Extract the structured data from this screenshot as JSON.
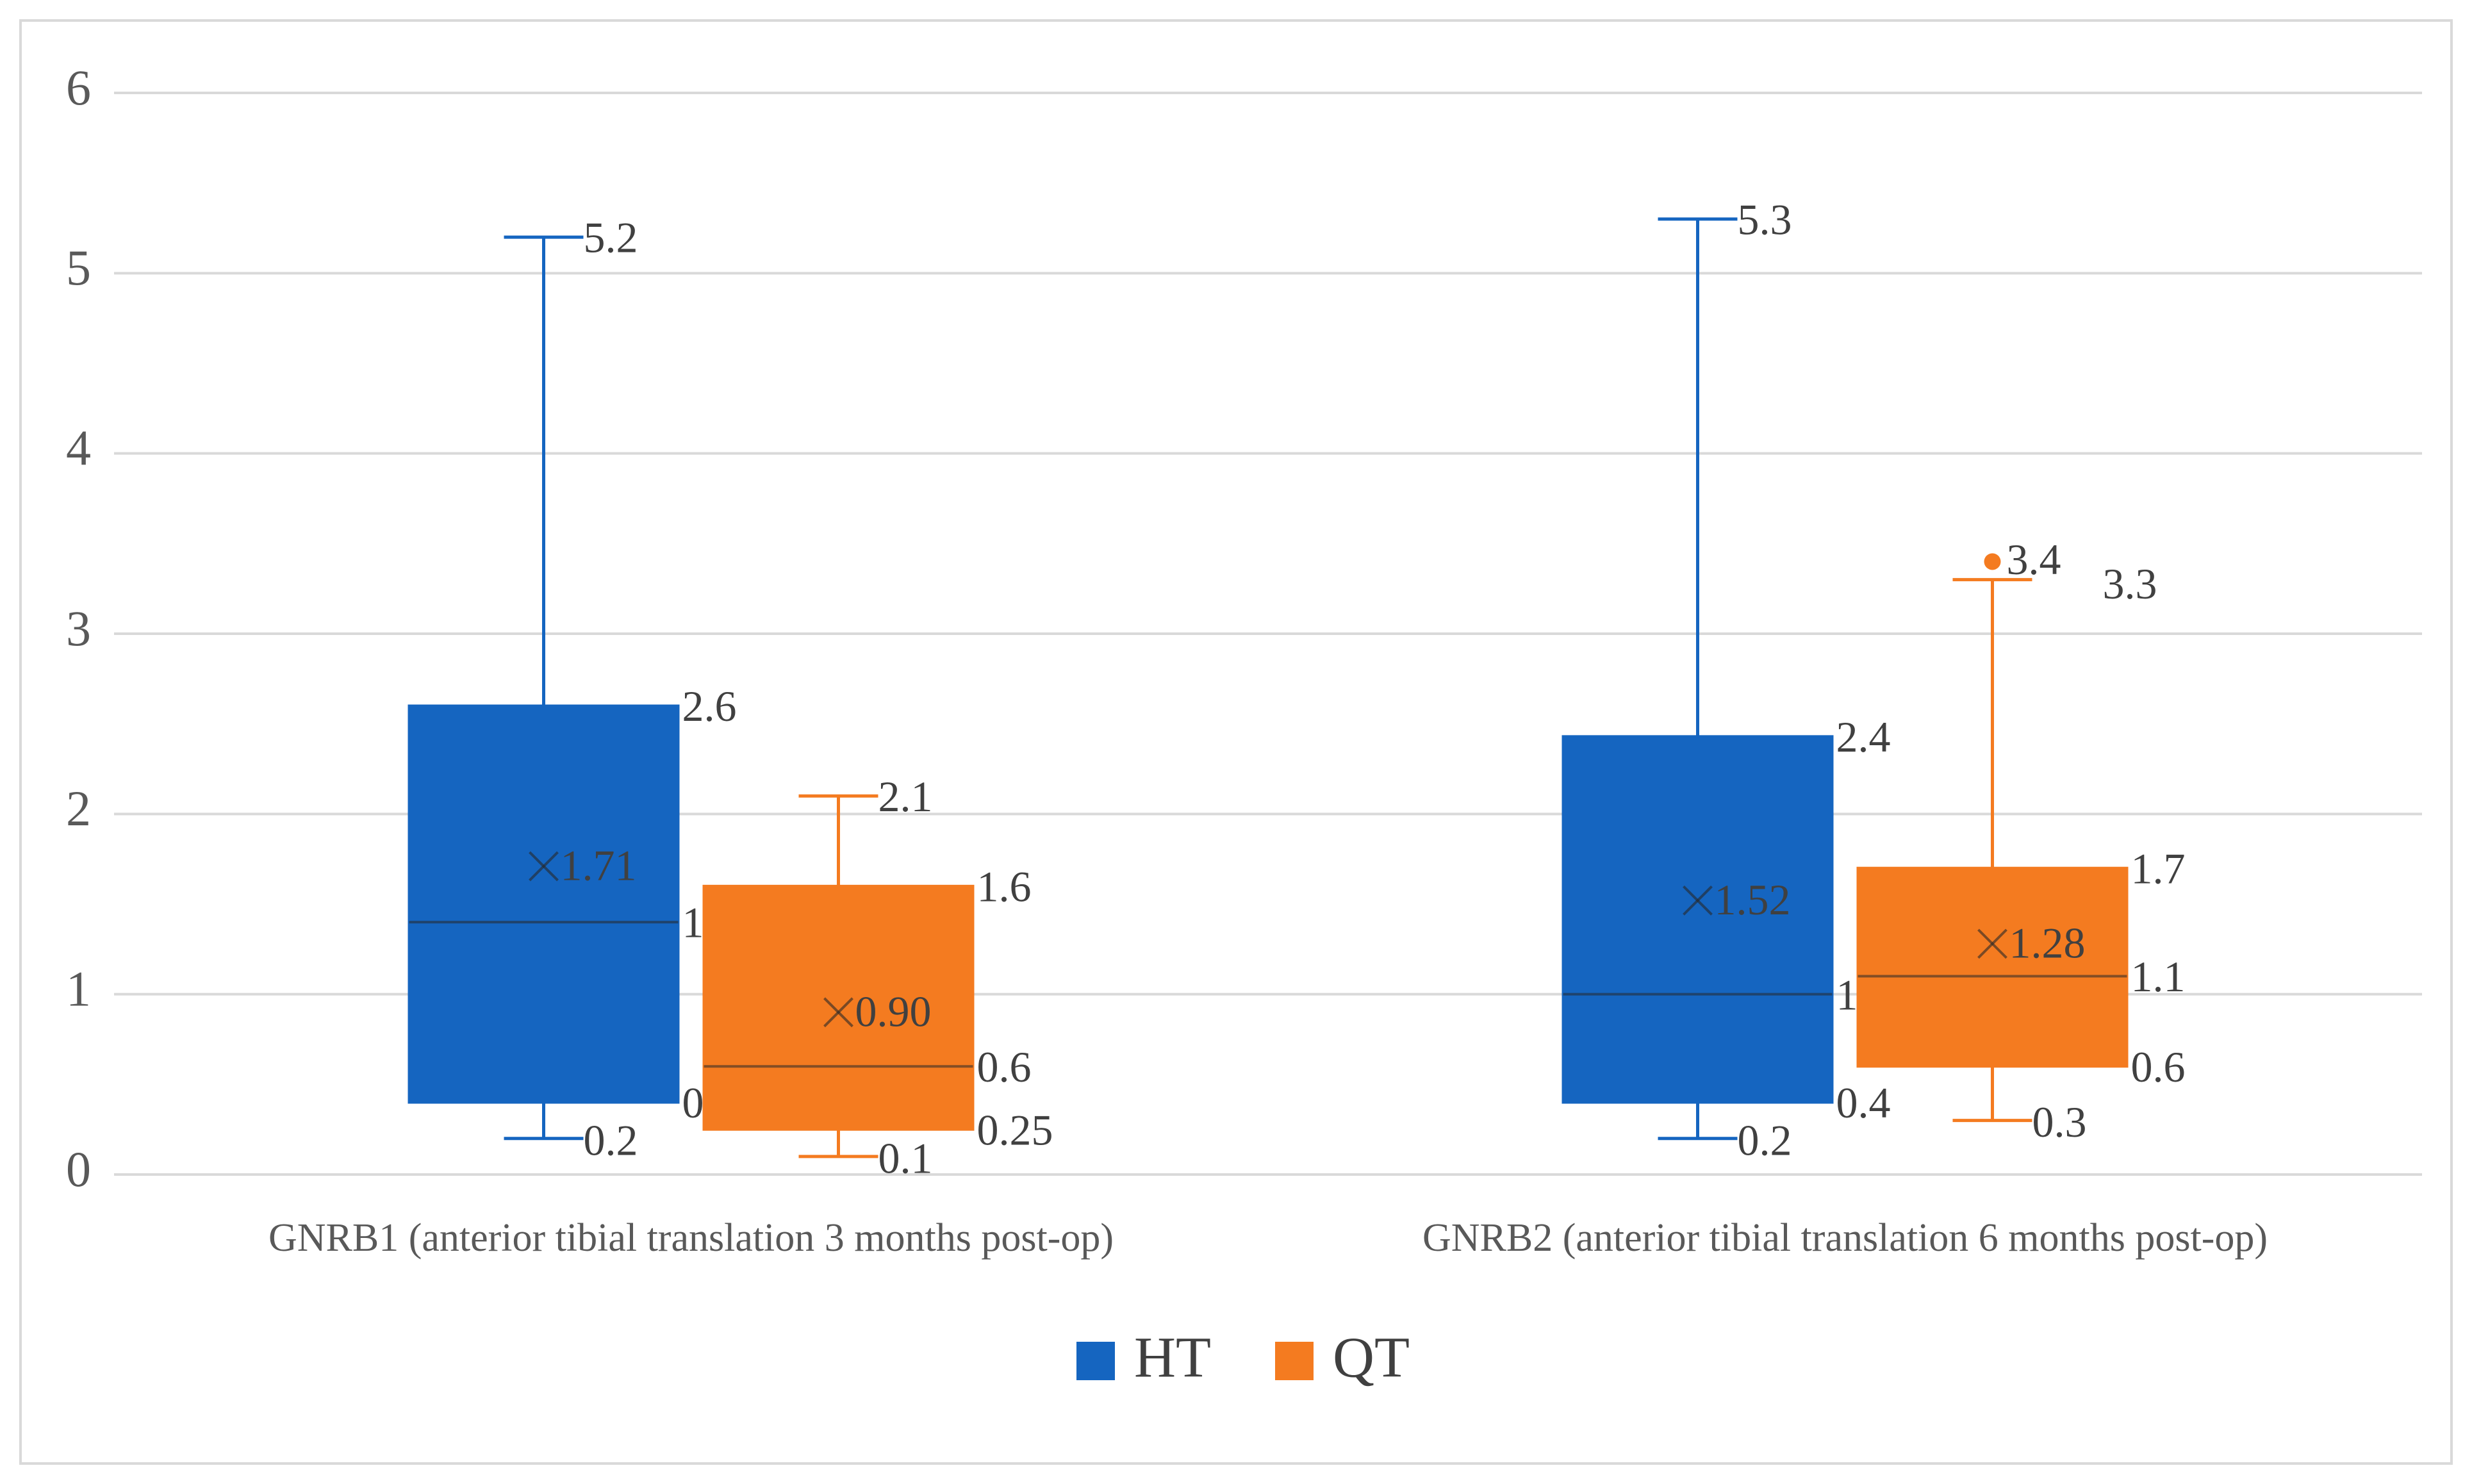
{
  "colors": {
    "HT": "#1565C0",
    "QT": "#F47B20",
    "grid": "#D9D9D9",
    "border": "#D9D9D9",
    "axis_text": "#595959",
    "label_text": "#404040"
  },
  "chart_data": {
    "type": "box",
    "title": "",
    "xlabel": "",
    "ylabel": "",
    "ylim": [
      0,
      6
    ],
    "yticks": [
      0,
      1,
      2,
      3,
      4,
      5,
      6
    ],
    "ytick_labels": [
      "0",
      "1",
      "2",
      "3",
      "4",
      "5",
      "6"
    ],
    "grid": true,
    "legend_position": "bottom",
    "categories": [
      "GNRB1 (anterior tibial translation  3 months post-op)",
      "GNRB2 (anterior tibial translation  6 months post-op)"
    ],
    "series": [
      {
        "name": "HT",
        "color_key": "HT",
        "boxes": [
          {
            "min": 0.2,
            "q1": 0.4,
            "median": 1.4,
            "q3": 2.6,
            "max": 5.2,
            "mean": 1.71,
            "labels": {
              "min": "0.2",
              "q1": "0.4",
              "median": "1.4",
              "q3": "2.6",
              "max": "5.2",
              "mean": "1.71"
            },
            "outliers": []
          },
          {
            "min": 0.2,
            "q1": 0.4,
            "median": 1.0,
            "q3": 2.43,
            "max": 5.3,
            "mean": 1.52,
            "labels": {
              "min": "0.2",
              "q1": "0.4",
              "median": "1.0",
              "q3": "2.4",
              "max": "5.3",
              "mean": "1.52"
            },
            "outliers": []
          }
        ]
      },
      {
        "name": "QT",
        "color_key": "QT",
        "boxes": [
          {
            "min": 0.1,
            "q1": 0.25,
            "median": 0.6,
            "q3": 1.6,
            "max": 2.1,
            "mean": 0.9,
            "labels": {
              "min": "0.1",
              "q1": "0.25",
              "median": "0.6",
              "q3": "1.6",
              "max": "2.1",
              "mean": "0.90"
            },
            "outliers": []
          },
          {
            "min": 0.3,
            "q1": 0.6,
            "median": 1.1,
            "q3": 1.7,
            "max": 3.3,
            "mean": 1.28,
            "labels": {
              "min": "0.3",
              "q1": "0.6",
              "median": "1.1",
              "q3": "1.7",
              "max": "3.3",
              "mean": "1.28"
            },
            "outliers": [
              {
                "value": 3.4,
                "label": "3.4"
              }
            ]
          }
        ]
      }
    ]
  }
}
